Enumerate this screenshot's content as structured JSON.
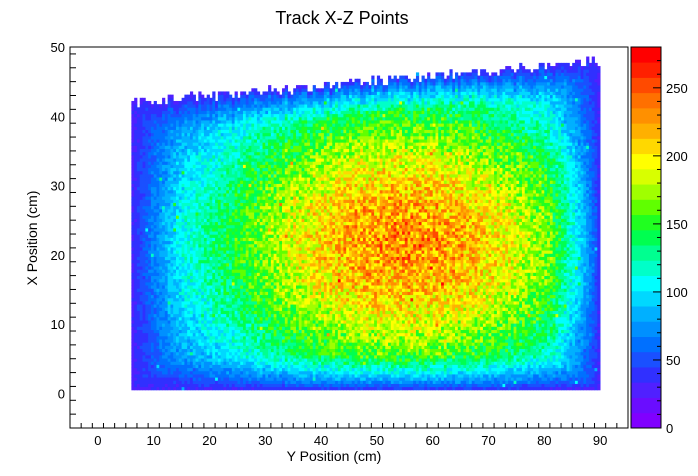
{
  "chart_data": {
    "type": "heatmap",
    "title": "Track X-Z Points",
    "xlabel": "Y Position (cm)",
    "ylabel": "X Position (cm)",
    "xlim": [
      -5,
      95
    ],
    "ylim": [
      -5,
      50
    ],
    "x_ticks": [
      0,
      10,
      20,
      30,
      40,
      50,
      60,
      70,
      80,
      90
    ],
    "y_ticks": [
      0,
      10,
      20,
      30,
      40,
      50
    ],
    "data_extent": {
      "x": [
        6,
        90
      ],
      "y": [
        0.5,
        48
      ],
      "note_top_slope": "top edge of filled region rises from y=42 at x=6 to y=48 at x=90"
    },
    "peak_center": {
      "x": 55,
      "y": 22
    },
    "z_range": [
      0,
      280
    ],
    "colorbar": {
      "ticks": [
        0,
        50,
        100,
        150,
        200,
        250
      ],
      "colors": [
        "#8000ff",
        "#6a0dff",
        "#5020ff",
        "#3030ff",
        "#1a50ff",
        "#0070ff",
        "#0090ff",
        "#00b0ff",
        "#00d8ff",
        "#00ffff",
        "#00ffc8",
        "#00ff90",
        "#00ff50",
        "#20ff20",
        "#60ff00",
        "#a0ff00",
        "#d8ff00",
        "#ffff00",
        "#ffd800",
        "#ffb000",
        "#ff9000",
        "#ff7000",
        "#ff4a00",
        "#ff2000",
        "#ff0000"
      ]
    }
  }
}
